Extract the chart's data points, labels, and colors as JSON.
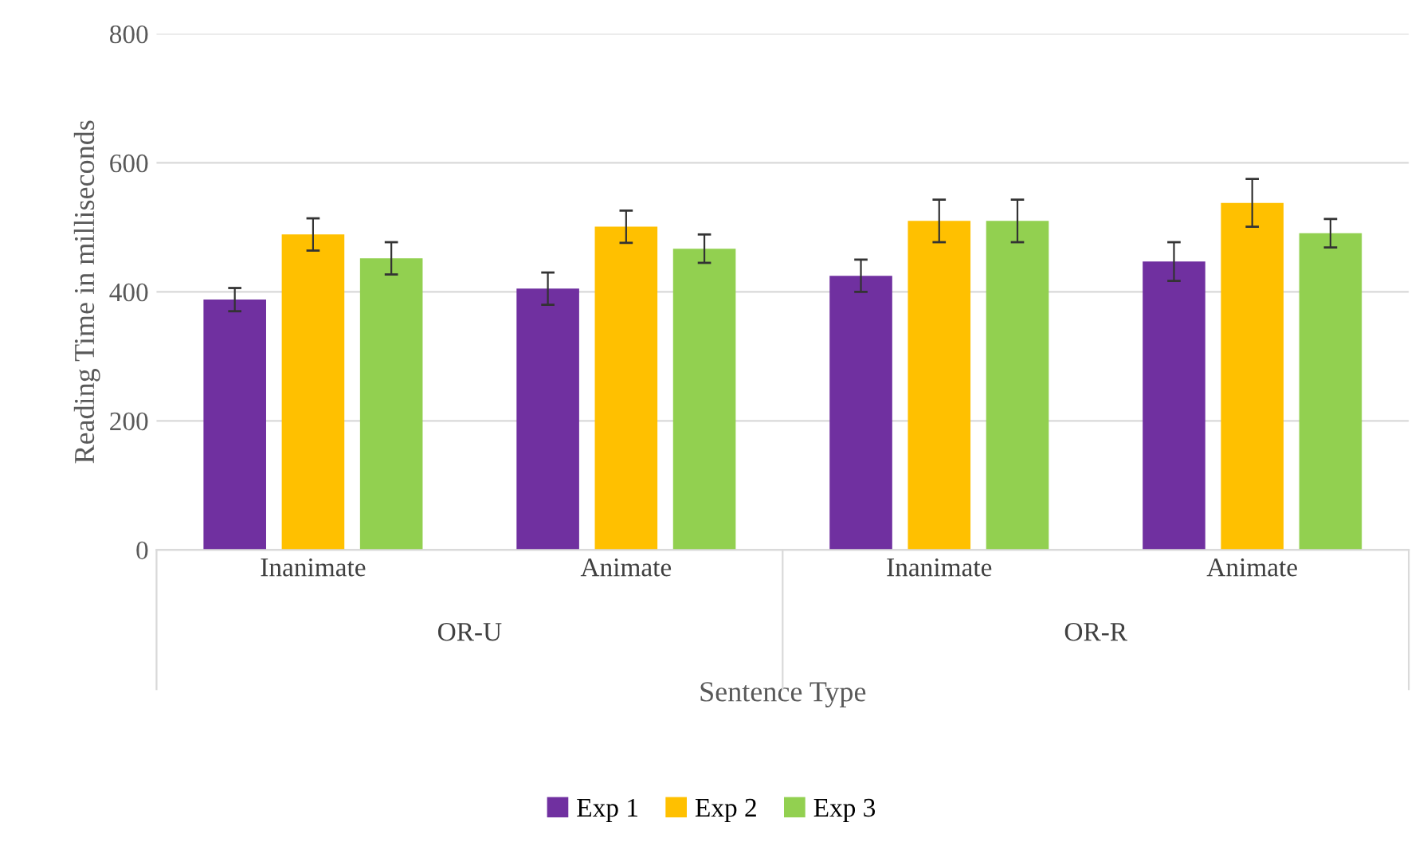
{
  "chart_data": {
    "type": "bar",
    "xlabel": "Sentence Type",
    "ylabel": "Reading Time in milliseconds",
    "categories": [
      "Inanimate",
      "Animate",
      "Inanimate",
      "Animate"
    ],
    "annotations": [
      "OR-U",
      "OR-R"
    ],
    "series": [
      {
        "name": "Exp 1",
        "color": "#7030a0",
        "values": [
          388,
          405,
          425,
          447
        ],
        "errors": [
          18,
          25,
          25,
          30
        ]
      },
      {
        "name": "Exp 2",
        "color": "#ffc000",
        "values": [
          489,
          501,
          510,
          538
        ],
        "errors": [
          25,
          25,
          33,
          37
        ]
      },
      {
        "name": "Exp 3",
        "color": "#92d050",
        "values": [
          452,
          467,
          510,
          491
        ],
        "errors": [
          25,
          22,
          33,
          22
        ]
      }
    ],
    "ylim": [
      0,
      800
    ],
    "yticks": [
      0,
      200,
      400,
      600,
      800
    ],
    "grid": "y",
    "legend": "bottom"
  }
}
